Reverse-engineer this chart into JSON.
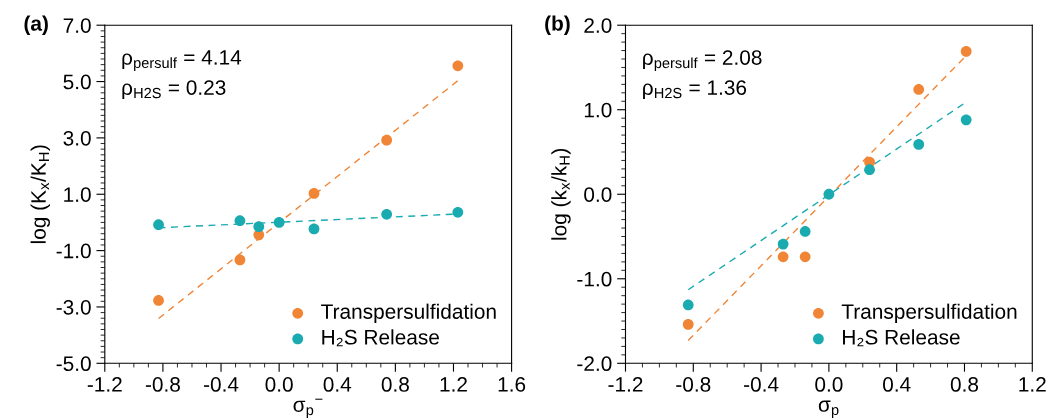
{
  "chart_data": [
    {
      "type": "scatter",
      "xlabel": "σ$_{p}$$^{−}$",
      "ylabel": "log (K$_{x}$/K$_{H}$)",
      "annotations": [
        "(a)",
        "ρ$_{persulf}$ = 4.14",
        "ρ$_{H2S}$ = 0.23"
      ],
      "xlim": [
        -1.2,
        1.6
      ],
      "xticks": [
        {
          "value": -1.2,
          "label": "-1.2"
        },
        {
          "value": -0.8,
          "label": "-0.8"
        },
        {
          "value": -0.4,
          "label": "-0.4"
        },
        {
          "value": 0.0,
          "label": "0.0"
        },
        {
          "value": 0.4,
          "label": "0.4"
        },
        {
          "value": 0.8,
          "label": "0.8"
        },
        {
          "value": 1.2,
          "label": "1.2"
        },
        {
          "value": 1.6,
          "label": "1.6"
        }
      ],
      "ylim": [
        -5,
        7
      ],
      "yticks": [
        {
          "value": -5,
          "label": "-5.0"
        },
        {
          "value": -3,
          "label": "-3.0"
        },
        {
          "value": -1,
          "label": "-1.0"
        },
        {
          "value": 1,
          "label": "1.0"
        },
        {
          "value": 3,
          "label": "3.0"
        },
        {
          "value": 5,
          "label": "5.0"
        },
        {
          "value": 7,
          "label": "7.0"
        }
      ],
      "grid": false,
      "legend": "bottom right",
      "marker": "circle",
      "series": [
        {
          "name": "Transpersulfidation",
          "color": "#f08536",
          "x": [
            -0.83,
            -0.27,
            -0.14,
            0.24,
            0.74,
            1.23
          ],
          "values": [
            -2.77,
            -1.33,
            -0.44,
            1.03,
            2.92,
            5.56
          ]
        },
        {
          "name": "H₂S Release",
          "color": "#1aabb0",
          "x": [
            -0.83,
            -0.27,
            -0.14,
            0.0,
            0.24,
            0.74,
            1.23
          ],
          "values": [
            -0.08,
            0.06,
            -0.15,
            0.0,
            -0.23,
            0.29,
            0.36
          ]
        },
        {
          "type": "line",
          "line_style": "dashed",
          "marker": "none",
          "color": "#f08536",
          "x": [
            -0.83,
            1.23
          ],
          "values": [
            -3.41,
            5.03
          ]
        },
        {
          "type": "line",
          "line_style": "dashed",
          "marker": "none",
          "color": "#1aabb0",
          "x": [
            -0.83,
            1.23
          ],
          "values": [
            -0.19,
            0.3
          ]
        }
      ]
    },
    {
      "type": "scatter",
      "xlabel": "σ$_{p}$",
      "ylabel": "log (k$_{x}$/k$_{H}$)",
      "annotations": [
        "(b)",
        "ρ$_{persulf}$ = 2.08",
        "ρ$_{H2S}$ = 1.36"
      ],
      "xlim": [
        -1.2,
        1.2
      ],
      "xticks": [
        {
          "value": -1.2,
          "label": "-1.2"
        },
        {
          "value": -0.8,
          "label": "-0.8"
        },
        {
          "value": -0.4,
          "label": "-0.4"
        },
        {
          "value": 0.0,
          "label": "0.0"
        },
        {
          "value": 0.4,
          "label": "0.4"
        },
        {
          "value": 0.8,
          "label": "0.8"
        },
        {
          "value": 1.2,
          "label": "1.2"
        }
      ],
      "ylim": [
        -2,
        2
      ],
      "yticks": [
        {
          "value": -2,
          "label": "-2.0"
        },
        {
          "value": -1,
          "label": "-1.0"
        },
        {
          "value": 0,
          "label": "0.0"
        },
        {
          "value": 1,
          "label": "1.0"
        },
        {
          "value": 2,
          "label": "2.0"
        }
      ],
      "grid": false,
      "legend": "bottom right",
      "marker": "circle",
      "series": [
        {
          "name": "Transpersulfidation",
          "color": "#f08536",
          "x": [
            -0.83,
            -0.27,
            -0.14,
            0.24,
            0.53,
            0.81
          ],
          "values": [
            -1.54,
            -0.74,
            -0.74,
            0.38,
            1.24,
            1.69
          ]
        },
        {
          "name": "H₂S Release",
          "color": "#1aabb0",
          "x": [
            -0.83,
            -0.27,
            -0.14,
            0.0,
            0.24,
            0.53,
            0.81
          ],
          "values": [
            -1.31,
            -0.59,
            -0.44,
            0.0,
            0.29,
            0.59,
            0.88
          ]
        },
        {
          "type": "line",
          "line_style": "dashed",
          "marker": "none",
          "color": "#f08536",
          "x": [
            -0.83,
            0.81
          ],
          "values": [
            -1.73,
            1.64
          ]
        },
        {
          "type": "line",
          "line_style": "dashed",
          "marker": "none",
          "color": "#1aabb0",
          "x": [
            -0.83,
            0.81
          ],
          "values": [
            -1.13,
            1.09
          ]
        }
      ]
    }
  ]
}
